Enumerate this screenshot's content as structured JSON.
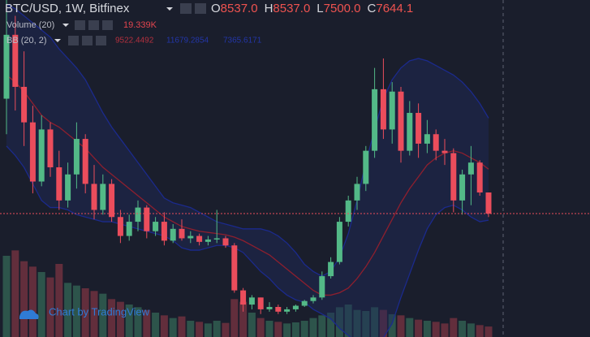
{
  "chart_data": {
    "type": "candlestick",
    "title": "BTC/USD, 1W, Bitfinex",
    "ohlc_prefixes": [
      "O",
      "H",
      "L",
      "C"
    ],
    "ohlc_labels": [
      "8537.0",
      "8537.0",
      "7500.0",
      "7644.1"
    ],
    "up_color": "#53b987",
    "down_color": "#eb4d5c",
    "ylim": [
      2430,
      16670
    ],
    "ohlc": [
      [
        12500,
        16800,
        11000,
        15200
      ],
      [
        15200,
        16000,
        12000,
        13000
      ],
      [
        13000,
        14500,
        10500,
        11500
      ],
      [
        11500,
        12200,
        8500,
        9000
      ],
      [
        9000,
        11800,
        8800,
        11200
      ],
      [
        11200,
        11500,
        9200,
        9600
      ],
      [
        9600,
        10300,
        7800,
        8200
      ],
      [
        8200,
        9800,
        7900,
        9300
      ],
      [
        9300,
        11500,
        8700,
        10800
      ],
      [
        10800,
        11000,
        8500,
        8900
      ],
      [
        8900,
        9700,
        7400,
        7800
      ],
      [
        7800,
        9300,
        7600,
        8900
      ],
      [
        8900,
        9100,
        7300,
        7500
      ],
      [
        7500,
        7800,
        6400,
        6700
      ],
      [
        6700,
        7600,
        6500,
        7300
      ],
      [
        7300,
        8200,
        6900,
        7900
      ],
      [
        7900,
        8000,
        6600,
        6900
      ],
      [
        6900,
        7500,
        6700,
        7300
      ],
      [
        7300,
        7700,
        6300,
        6500
      ],
      [
        6500,
        7200,
        6400,
        7000
      ],
      [
        7000,
        7400,
        6500,
        6600
      ],
      [
        6600,
        6900,
        6400,
        6700
      ],
      [
        6700,
        6800,
        6300,
        6450
      ],
      [
        6450,
        6700,
        6300,
        6550
      ],
      [
        6550,
        7800,
        6400,
        6600
      ],
      [
        6600,
        6700,
        6200,
        6300
      ],
      [
        6300,
        6400,
        4300,
        4400
      ],
      [
        4400,
        4500,
        3500,
        3800
      ],
      [
        3800,
        4200,
        3600,
        4100
      ],
      [
        4100,
        4100,
        3400,
        3600
      ],
      [
        3600,
        3900,
        3500,
        3700
      ],
      [
        3700,
        3800,
        3400,
        3500
      ],
      [
        3500,
        3700,
        3400,
        3600
      ],
      [
        3600,
        3800,
        3500,
        3750
      ],
      [
        3750,
        4000,
        3700,
        3950
      ],
      [
        3950,
        4200,
        3850,
        4100
      ],
      [
        4100,
        5200,
        4000,
        5000
      ],
      [
        5000,
        5800,
        4900,
        5600
      ],
      [
        5600,
        7500,
        5500,
        7300
      ],
      [
        7300,
        8400,
        7100,
        8200
      ],
      [
        8200,
        9200,
        7800,
        8900
      ],
      [
        8900,
        10500,
        8600,
        10300
      ],
      [
        10300,
        13800,
        10000,
        12900
      ],
      [
        12900,
        14200,
        10800,
        11200
      ],
      [
        11200,
        13200,
        10600,
        12800
      ],
      [
        12800,
        13000,
        9800,
        10300
      ],
      [
        10300,
        12400,
        10100,
        11900
      ],
      [
        11900,
        12300,
        10000,
        10600
      ],
      [
        10600,
        11600,
        10200,
        11000
      ],
      [
        11000,
        11200,
        9900,
        10300
      ],
      [
        10300,
        10800,
        9700,
        10200
      ],
      [
        10200,
        10400,
        7700,
        8200
      ],
      [
        8200,
        9500,
        7600,
        9300
      ],
      [
        9300,
        10500,
        8000,
        9800
      ],
      [
        9800,
        9900,
        8400,
        8537
      ],
      [
        8537,
        8537,
        7500,
        7644.1
      ]
    ],
    "volume": {
      "name": "Volume (20)",
      "legend_value": "19.339K",
      "ylim": [
        0,
        300
      ],
      "values": [
        150,
        160,
        140,
        130,
        120,
        110,
        135,
        100,
        95,
        90,
        85,
        80,
        70,
        65,
        60,
        55,
        50,
        45,
        40,
        35,
        38,
        30,
        28,
        25,
        30,
        26,
        70,
        65,
        45,
        35,
        30,
        28,
        25,
        27,
        30,
        35,
        40,
        45,
        55,
        60,
        50,
        48,
        55,
        50,
        42,
        40,
        35,
        32,
        30,
        28,
        25,
        35,
        30,
        25,
        22,
        19.339
      ]
    },
    "bollinger": {
      "name": "BB (20, 2)",
      "band_color": "#1f2b5a",
      "basis": {
        "color": "#8e1f2e",
        "values": [
          13500,
          13200,
          12800,
          12300,
          11800,
          11500,
          11300,
          11000,
          10700,
          10400,
          10000,
          9600,
          9300,
          9000,
          8700,
          8400,
          8100,
          7800,
          7500,
          7300,
          7100,
          7000,
          6900,
          6850,
          6800,
          6750,
          6650,
          6500,
          6300,
          6100,
          5900,
          5600,
          5300,
          5000,
          4700,
          4400,
          4200,
          4200,
          4300,
          4500,
          4900,
          5400,
          6000,
          6700,
          7400,
          8100,
          8700,
          9200,
          9700,
          10000,
          10200,
          10300,
          10200,
          10000,
          9800,
          9522.4492
        ]
      },
      "upper": {
        "color": "#1b2a8c",
        "values": [
          16500,
          16300,
          16000,
          15700,
          15400,
          15100,
          14600,
          14200,
          13800,
          13300,
          12600,
          11900,
          11300,
          10800,
          10300,
          9800,
          9300,
          8800,
          8300,
          8100,
          8000,
          7900,
          7700,
          7500,
          7300,
          7200,
          7100,
          7000,
          7000,
          7000,
          6900,
          6700,
          6400,
          6000,
          5500,
          5200,
          5000,
          5200,
          5800,
          6800,
          8200,
          9800,
          11200,
          12500,
          13300,
          13800,
          14100,
          14200,
          14100,
          13900,
          13700,
          13500,
          13200,
          12800,
          12300,
          11679.2854
        ]
      },
      "lower": {
        "color": "#1b2a8c",
        "values": [
          10500,
          10100,
          9600,
          8900,
          8200,
          7900,
          7900,
          7800,
          7600,
          7500,
          7400,
          7300,
          7300,
          7200,
          7100,
          7000,
          6900,
          6800,
          6700,
          6500,
          6200,
          6100,
          6100,
          6200,
          6300,
          6300,
          6200,
          6000,
          5600,
          5200,
          4900,
          4500,
          4200,
          4000,
          3900,
          3600,
          3400,
          3200,
          2800,
          2500,
          2200,
          2000,
          2100,
          2400,
          3000,
          4100,
          5100,
          6100,
          7000,
          7600,
          7900,
          8000,
          7800,
          7500,
          7300,
          7365.6171
        ]
      }
    },
    "watermark": "Chart by TradingView"
  }
}
